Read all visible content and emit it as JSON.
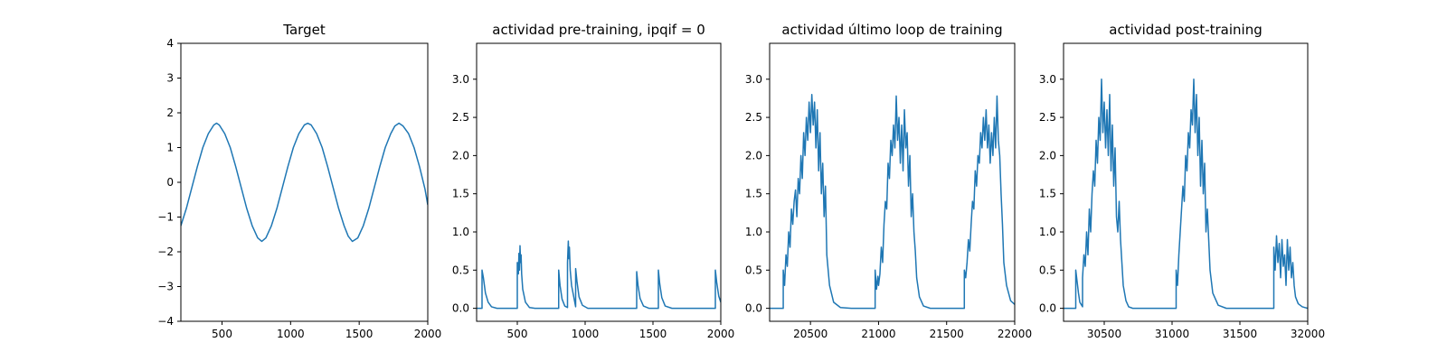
{
  "chart_data": [
    {
      "type": "line",
      "title": "Target",
      "xlabel": "",
      "ylabel": "",
      "xlim": [
        200,
        2000
      ],
      "ylim": [
        -4,
        4
      ],
      "xticks": [
        500,
        1000,
        1500,
        2000
      ],
      "yticks": [
        -4,
        -3,
        -2,
        -1,
        0,
        1,
        2,
        3,
        4
      ],
      "xtick_labels": [
        "500",
        "1000",
        "1500",
        "2000"
      ],
      "ytick_labels": [
        "−4",
        "−3",
        "−2",
        "−1",
        "0",
        "1",
        "2",
        "3",
        "4"
      ],
      "grid": false,
      "color": "#1f77b4",
      "series": [
        {
          "x": [
            200,
            240,
            280,
            320,
            360,
            400,
            440,
            460,
            480,
            520,
            560,
            600,
            640,
            680,
            720,
            760,
            790,
            820,
            860,
            900,
            940,
            980,
            1020,
            1060,
            1100,
            1125,
            1150,
            1190,
            1230,
            1270,
            1310,
            1350,
            1390,
            1420,
            1450,
            1490,
            1530,
            1570,
            1610,
            1650,
            1690,
            1730,
            1760,
            1790,
            1820,
            1860,
            1900,
            1940,
            1980,
            2000
          ],
          "y": [
            -1.25,
            -0.75,
            -0.15,
            0.45,
            1.0,
            1.4,
            1.65,
            1.7,
            1.65,
            1.4,
            1.0,
            0.45,
            -0.15,
            -0.75,
            -1.25,
            -1.6,
            -1.7,
            -1.6,
            -1.25,
            -0.75,
            -0.15,
            0.45,
            1.0,
            1.4,
            1.65,
            1.7,
            1.65,
            1.4,
            1.0,
            0.45,
            -0.15,
            -0.75,
            -1.25,
            -1.55,
            -1.7,
            -1.6,
            -1.25,
            -0.75,
            -0.15,
            0.45,
            1.0,
            1.4,
            1.62,
            1.7,
            1.62,
            1.4,
            1.0,
            0.45,
            -0.2,
            -0.65
          ]
        }
      ]
    },
    {
      "type": "line",
      "title": "actividad pre-training, ipqif = 0",
      "xlabel": "",
      "ylabel": "",
      "xlim": [
        200,
        2000
      ],
      "ylim": [
        -0.17,
        3.47
      ],
      "xticks": [
        500,
        1000,
        1500,
        2000
      ],
      "yticks": [
        0.0,
        0.5,
        1.0,
        1.5,
        2.0,
        2.5,
        3.0
      ],
      "xtick_labels": [
        "500",
        "1000",
        "1500",
        "2000"
      ],
      "ytick_labels": [
        "0.0",
        "0.5",
        "1.0",
        "1.5",
        "2.0",
        "2.5",
        "3.0"
      ],
      "grid": false,
      "color": "#1f77b4",
      "series": [
        {
          "x": [
            200,
            240,
            240,
            250,
            265,
            285,
            310,
            350,
            400,
            450,
            500,
            500,
            508,
            512,
            516,
            520,
            524,
            528,
            532,
            540,
            560,
            590,
            630,
            700,
            780,
            805,
            805,
            815,
            830,
            850,
            870,
            870,
            876,
            880,
            884,
            890,
            900,
            930,
            930,
            940,
            955,
            980,
            1020,
            1100,
            1200,
            1300,
            1380,
            1380,
            1390,
            1405,
            1430,
            1470,
            1540,
            1540,
            1550,
            1565,
            1590,
            1640,
            1750,
            1880,
            1960,
            1960,
            1970,
            1985,
            2000
          ],
          "y": [
            0,
            0,
            0.5,
            0.4,
            0.2,
            0.08,
            0.02,
            0.0,
            0.0,
            0.0,
            0.0,
            0.6,
            0.45,
            0.72,
            0.5,
            0.82,
            0.6,
            0.7,
            0.45,
            0.25,
            0.08,
            0.01,
            0.0,
            0.0,
            0.0,
            0.0,
            0.5,
            0.3,
            0.12,
            0.03,
            0.01,
            0.6,
            0.88,
            0.65,
            0.8,
            0.5,
            0.3,
            0.02,
            0.52,
            0.35,
            0.15,
            0.04,
            0.0,
            0.0,
            0.0,
            0.0,
            0.0,
            0.48,
            0.3,
            0.13,
            0.03,
            0.0,
            0.0,
            0.5,
            0.32,
            0.14,
            0.03,
            0.0,
            0.0,
            0.0,
            0.0,
            0.5,
            0.34,
            0.16,
            0.08
          ]
        }
      ]
    },
    {
      "type": "line",
      "title": "actividad último loop de training",
      "xlabel": "",
      "ylabel": "",
      "xlim": [
        20200,
        22000
      ],
      "ylim": [
        -0.17,
        3.47
      ],
      "xticks": [
        20500,
        21000,
        21500,
        22000
      ],
      "yticks": [
        0.0,
        0.5,
        1.0,
        1.5,
        2.0,
        2.5,
        3.0
      ],
      "xtick_labels": [
        "20500",
        "21000",
        "21500",
        "22000"
      ],
      "ytick_labels": [
        "0.0",
        "0.5",
        "1.0",
        "1.5",
        "2.0",
        "2.5",
        "3.0"
      ],
      "grid": false,
      "color": "#1f77b4",
      "series": [
        {
          "x": [
            20200,
            20300,
            20300,
            20310,
            20320,
            20330,
            20340,
            20350,
            20360,
            20370,
            20380,
            20390,
            20400,
            20410,
            20420,
            20430,
            20440,
            20450,
            20460,
            20470,
            20480,
            20490,
            20500,
            20510,
            20520,
            20530,
            20540,
            20550,
            20560,
            20570,
            20580,
            20590,
            20600,
            20610,
            20620,
            20640,
            20670,
            20720,
            20800,
            20900,
            20975,
            20975,
            20985,
            20995,
            21000,
            21010,
            21020,
            21030,
            21040,
            21050,
            21060,
            21070,
            21080,
            21090,
            21100,
            21110,
            21120,
            21130,
            21140,
            21150,
            21160,
            21170,
            21180,
            21190,
            21200,
            21210,
            21220,
            21230,
            21240,
            21250,
            21260,
            21270,
            21280,
            21300,
            21330,
            21380,
            21450,
            21550,
            21630,
            21630,
            21640,
            21650,
            21660,
            21670,
            21680,
            21690,
            21700,
            21710,
            21720,
            21730,
            21740,
            21750,
            21760,
            21770,
            21780,
            21790,
            21800,
            21810,
            21820,
            21830,
            21840,
            21850,
            21860,
            21870,
            21880,
            21890,
            21900,
            21910,
            21920,
            21940,
            21970,
            22000
          ],
          "y": [
            0,
            0,
            0.5,
            0.3,
            0.7,
            0.55,
            1.0,
            0.8,
            1.3,
            1.1,
            1.4,
            1.55,
            1.2,
            1.7,
            1.5,
            2.0,
            1.7,
            2.3,
            2.0,
            2.5,
            2.2,
            2.7,
            2.3,
            2.8,
            2.4,
            2.7,
            2.1,
            2.6,
            1.8,
            2.3,
            1.5,
            1.9,
            1.2,
            1.6,
            0.7,
            0.3,
            0.08,
            0.01,
            0.0,
            0.0,
            0.0,
            0.5,
            0.25,
            0.42,
            0.3,
            0.45,
            0.8,
            0.6,
            1.1,
            1.4,
            1.3,
            1.9,
            1.7,
            2.2,
            2.0,
            2.4,
            2.1,
            2.78,
            2.2,
            2.5,
            1.9,
            2.4,
            1.8,
            2.6,
            2.1,
            2.3,
            1.6,
            2.0,
            1.2,
            1.5,
            1.0,
            0.75,
            0.4,
            0.15,
            0.03,
            0.0,
            0.0,
            0.0,
            0.0,
            0.5,
            0.4,
            0.6,
            0.9,
            0.75,
            1.1,
            1.4,
            1.3,
            1.8,
            1.6,
            2.0,
            1.9,
            2.3,
            2.1,
            2.5,
            2.2,
            2.6,
            2.1,
            2.4,
            1.9,
            2.3,
            2.0,
            2.5,
            2.1,
            2.78,
            2.2,
            2.0,
            1.5,
            1.1,
            0.6,
            0.3,
            0.1,
            0.05
          ]
        }
      ]
    },
    {
      "type": "line",
      "title": "actividad post-training",
      "xlabel": "",
      "ylabel": "",
      "xlim": [
        30200,
        32000
      ],
      "ylim": [
        -0.17,
        3.47
      ],
      "xticks": [
        30500,
        31000,
        31500,
        32000
      ],
      "yticks": [
        0.0,
        0.5,
        1.0,
        1.5,
        2.0,
        2.5,
        3.0
      ],
      "xtick_labels": [
        "30500",
        "31000",
        "31500",
        "32000"
      ],
      "ytick_labels": [
        "0.0",
        "0.5",
        "1.0",
        "1.5",
        "2.0",
        "2.5",
        "3.0"
      ],
      "grid": false,
      "color": "#1f77b4",
      "series": [
        {
          "x": [
            30200,
            30290,
            30290,
            30300,
            30310,
            30320,
            30340,
            30340,
            30350,
            30360,
            30370,
            30380,
            30390,
            30400,
            30410,
            30420,
            30430,
            30440,
            30450,
            30460,
            30470,
            30480,
            30490,
            30500,
            30510,
            30520,
            30530,
            30540,
            30550,
            30560,
            30570,
            30580,
            30590,
            30600,
            30610,
            30620,
            30630,
            30640,
            30660,
            30680,
            30710,
            30760,
            30850,
            30950,
            31030,
            31030,
            31040,
            31050,
            31060,
            31070,
            31080,
            31090,
            31100,
            31110,
            31120,
            31130,
            31140,
            31150,
            31160,
            31170,
            31180,
            31190,
            31200,
            31210,
            31220,
            31230,
            31240,
            31250,
            31260,
            31280,
            31300,
            31340,
            31400,
            31500,
            31600,
            31700,
            31750,
            31750,
            31760,
            31770,
            31780,
            31790,
            31800,
            31810,
            31820,
            31830,
            31840,
            31850,
            31860,
            31870,
            31880,
            31890,
            31900,
            31910,
            31930,
            31960,
            32000
          ],
          "y": [
            0,
            0,
            0.5,
            0.35,
            0.2,
            0.08,
            0.02,
            0.4,
            0.7,
            0.55,
            1.0,
            0.7,
            1.3,
            1.0,
            1.5,
            1.8,
            1.6,
            2.2,
            1.9,
            2.5,
            2.2,
            3.0,
            2.3,
            2.7,
            2.1,
            2.6,
            2.0,
            2.8,
            1.8,
            2.4,
            1.6,
            2.1,
            1.2,
            1.0,
            1.4,
            0.9,
            0.6,
            0.3,
            0.1,
            0.02,
            0.0,
            0.0,
            0.0,
            0.0,
            0.0,
            0.5,
            0.3,
            0.7,
            1.0,
            1.3,
            1.6,
            1.4,
            2.0,
            1.8,
            2.3,
            2.1,
            2.6,
            2.4,
            3.0,
            2.3,
            2.8,
            2.0,
            2.5,
            1.6,
            2.2,
            1.5,
            1.9,
            1.0,
            1.3,
            0.5,
            0.2,
            0.04,
            0.0,
            0.0,
            0.0,
            0.0,
            0.0,
            0.8,
            0.5,
            0.95,
            0.6,
            0.85,
            0.4,
            0.9,
            0.55,
            0.7,
            0.3,
            0.9,
            0.5,
            0.8,
            0.4,
            0.6,
            0.3,
            0.15,
            0.06,
            0.02,
            0.0
          ]
        }
      ]
    }
  ]
}
